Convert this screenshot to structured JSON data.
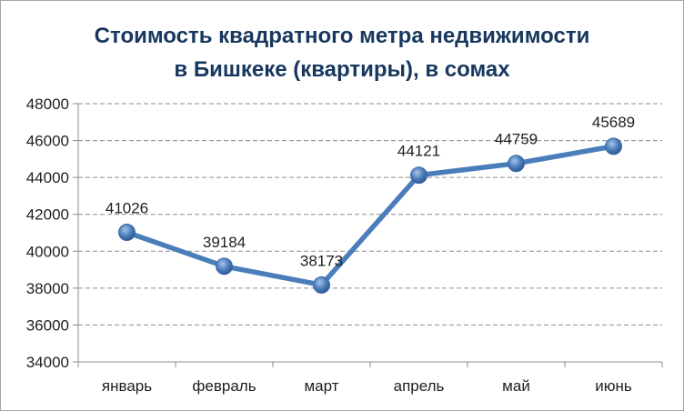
{
  "chart_data": {
    "type": "line",
    "title_lines": [
      "Стоимость квадратного метра недвижимости",
      "в Бишкеке (квартиры), в сомах"
    ],
    "categories": [
      "январь",
      "февраль",
      "март",
      "апрель",
      "май",
      "июнь"
    ],
    "series": [
      {
        "values": [
          41026,
          39184,
          38173,
          44121,
          44759,
          45689
        ]
      }
    ],
    "data_labels": [
      "41026",
      "39184",
      "38173",
      "44121",
      "44759",
      "45689"
    ],
    "ylim": [
      34000,
      48000
    ],
    "yticks": [
      "34000",
      "36000",
      "38000",
      "40000",
      "42000",
      "44000",
      "46000",
      "48000"
    ],
    "grid": "horizontal dashed",
    "line_color": "#4a7ebb",
    "marker_color": "#4f81bd"
  }
}
